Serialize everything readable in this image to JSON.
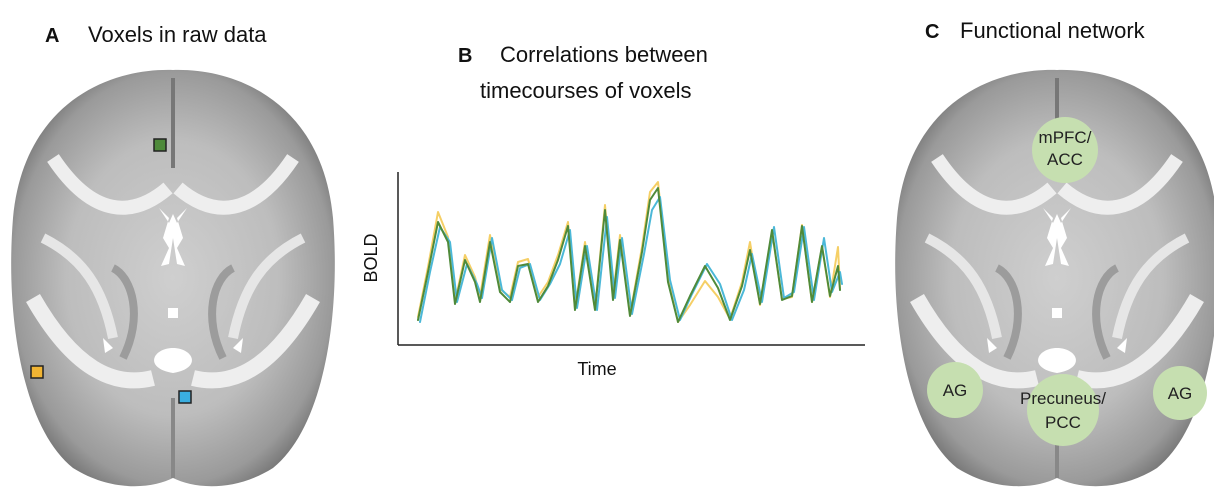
{
  "panel_a": {
    "label": "A",
    "title": "Voxels in raw data"
  },
  "panel_b": {
    "label": "B",
    "title_lines": [
      "Correlations between",
      "timecourses of voxels"
    ],
    "y_label": "BOLD",
    "x_label": "Time"
  },
  "panel_c": {
    "label": "C",
    "title": "Functional network",
    "regions": [
      [
        "mPFC/",
        "ACC"
      ],
      [
        "AG"
      ],
      [
        "Precuneus/",
        "PCC"
      ],
      [
        "AG"
      ]
    ]
  }
}
